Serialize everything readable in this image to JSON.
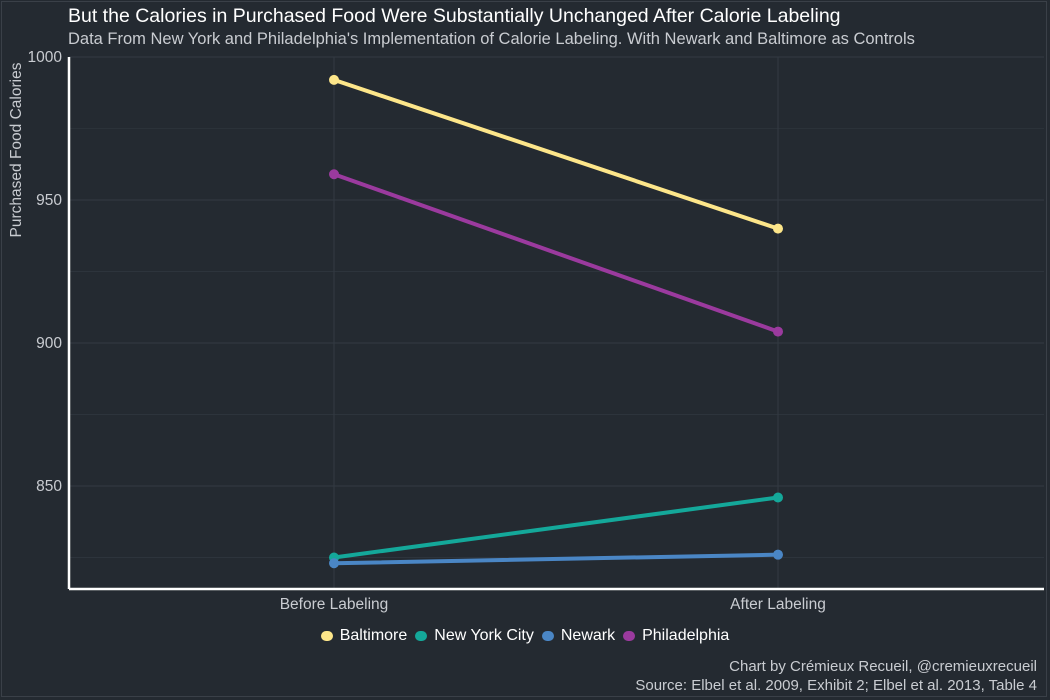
{
  "chart_data": {
    "type": "line",
    "title": "But the Calories in Purchased Food Were Substantially Unchanged After Calorie Labeling",
    "subtitle": "Data From New York and Philadelphia's Implementation of Calorie Labeling. With Newark and Baltimore as Controls",
    "xlabel": "",
    "ylabel": "Purchased Food Calories",
    "categories": [
      "Before Labeling",
      "After Labeling"
    ],
    "ylim": [
      814,
      1000
    ],
    "yticks": [
      850,
      900,
      950,
      1000
    ],
    "ytick_labels": [
      "850",
      "900",
      "950",
      "1000"
    ],
    "grid": true,
    "legend_position": "bottom",
    "series": [
      {
        "name": "Baltimore",
        "color": "#fde68a",
        "values": [
          992,
          940
        ]
      },
      {
        "name": "New York City",
        "color": "#14a89a",
        "values": [
          825,
          846
        ]
      },
      {
        "name": "Newark",
        "color": "#4a86c5",
        "values": [
          823,
          826
        ]
      },
      {
        "name": "Philadelphia",
        "color": "#9b3a9e",
        "values": [
          959,
          904
        ]
      }
    ],
    "caption_lines": [
      "Chart by Crémieux Recueil, @cremieuxrecueil",
      "Source: Elbel et al. 2009, Exhibit 2; Elbel et al. 2013, Table 4"
    ]
  },
  "theme": {
    "background": "#242a31",
    "grid_color": "#333a43",
    "axis_color": "#ffffff",
    "text_color": "#c9ccd1"
  }
}
